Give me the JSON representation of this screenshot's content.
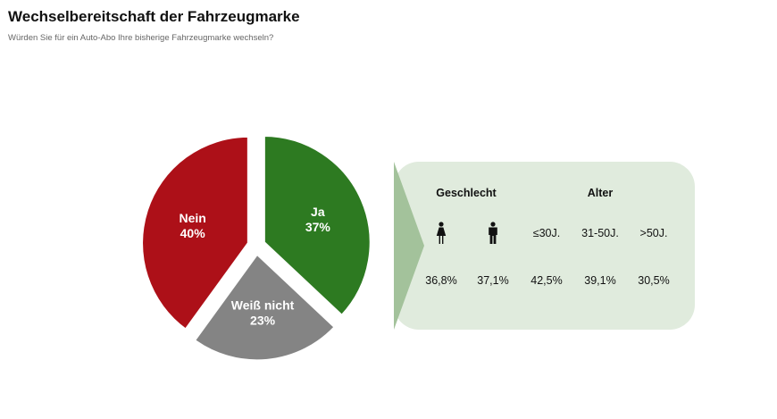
{
  "header": {
    "title": "Wechselbereitschaft der Fahrzeugmarke",
    "subtitle": "Würden Sie für ein Auto-Abo Ihre bisherige Fahrzeugmarke wechseln?"
  },
  "colors": {
    "nein": "#ad1018",
    "ja": "#2d7a21",
    "weiss_nicht": "#848484",
    "panel_bg": "#e0ebdd",
    "panel_arrow": "#a3c29b"
  },
  "chart_data": {
    "type": "pie",
    "title": "",
    "slices": [
      {
        "label": "Ja",
        "value": 37,
        "value_label": "37%",
        "color": "#2d7a21"
      },
      {
        "label": "Weiß nicht",
        "value": 23,
        "value_label": "23%",
        "color": "#848484"
      },
      {
        "label": "Nein",
        "value": 40,
        "value_label": "40%",
        "color": "#ad1018"
      }
    ]
  },
  "breakdown": {
    "group_gender": "Geschlecht",
    "group_age": "Alter",
    "columns": [
      {
        "icon": "female-icon",
        "header": "",
        "value": "36,8%"
      },
      {
        "icon": "male-icon",
        "header": "",
        "value": "37,1%"
      },
      {
        "icon": "",
        "header": "≤30J.",
        "value": "42,5%"
      },
      {
        "icon": "",
        "header": "31-50J.",
        "value": "39,1%"
      },
      {
        "icon": "",
        "header": ">50J.",
        "value": "30,5%"
      }
    ]
  }
}
